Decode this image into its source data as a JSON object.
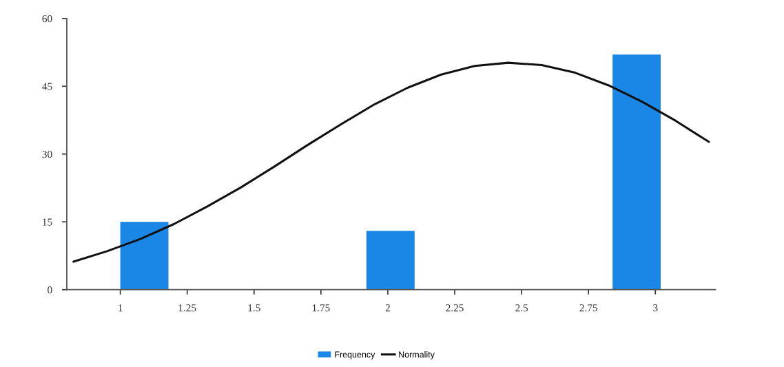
{
  "chart_data": {
    "type": "histogram",
    "bins": [
      1.0,
      1.18,
      1.92,
      2.1,
      2.84,
      3.02
    ],
    "series": [
      {
        "name": "Frequency",
        "color": "#1a87e6",
        "values": [
          15,
          0,
          13,
          0,
          52
        ]
      },
      {
        "name": "Normality",
        "type": "line",
        "color": "#111111",
        "x": [
          0.825,
          0.95,
          1.075,
          1.2,
          1.325,
          1.45,
          1.575,
          1.7,
          1.825,
          1.95,
          2.075,
          2.2,
          2.325,
          2.45,
          2.575,
          2.7,
          2.825,
          2.95,
          3.075,
          3.2
        ],
        "values": [
          6.2,
          8.5,
          11.2,
          14.5,
          18.4,
          22.6,
          27.2,
          32.0,
          36.6,
          41.0,
          44.7,
          47.6,
          49.5,
          50.2,
          49.7,
          48.0,
          45.2,
          41.6,
          37.4,
          32.7
        ]
      }
    ],
    "xlim": [
      0.8,
      3.225
    ],
    "xticks": [
      1,
      1.25,
      1.5,
      1.75,
      2,
      2.25,
      2.5,
      2.75,
      3
    ],
    "ylim": [
      0,
      60
    ],
    "yticks": [
      0,
      15,
      30,
      45,
      60
    ],
    "grid": false,
    "legend": "bottom"
  }
}
